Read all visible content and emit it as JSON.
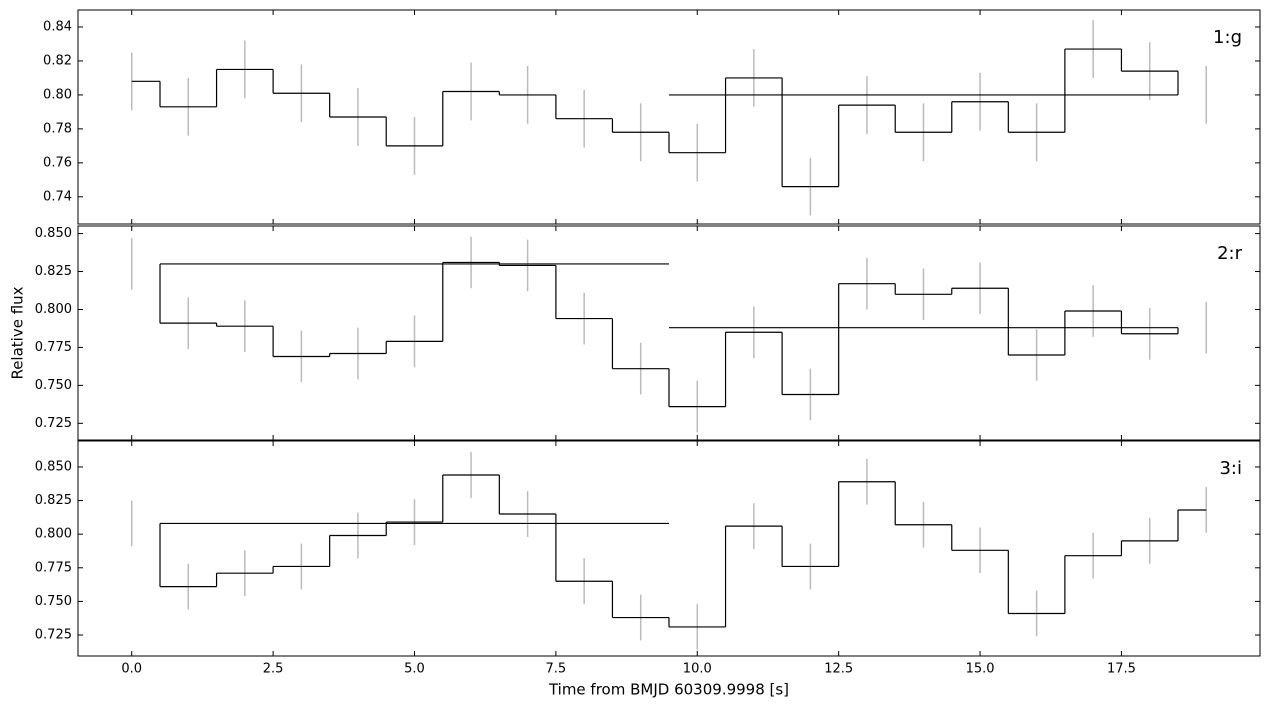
{
  "chart_data": [
    {
      "type": "step",
      "label": "1:g",
      "xlim": [
        -0.95,
        19.95
      ],
      "xticks": [
        0,
        2.5,
        5,
        7.5,
        10,
        12.5,
        15,
        17.5
      ],
      "xticklabels": false,
      "ylim": [
        0.724,
        0.85
      ],
      "yticks": [
        0.74,
        0.76,
        0.78,
        {
          "value": 0.8,
          "label": "0.80"
        },
        0.82,
        0.84
      ],
      "errorbars": {
        "color": "#bbbbbb",
        "x": [
          0,
          1,
          2,
          3,
          4,
          5,
          6,
          7,
          8,
          9,
          10,
          11,
          12,
          13,
          14,
          15,
          16,
          17,
          18,
          19
        ],
        "values": [
          0.808,
          0.793,
          0.815,
          0.801,
          0.787,
          0.77,
          0.802,
          0.8,
          0.786,
          0.778,
          0.766,
          0.81,
          0.746,
          0.794,
          0.778,
          0.796,
          0.778,
          0.827,
          0.814,
          0.8
        ],
        "errors": [
          0.017,
          0.017,
          0.017,
          0.017,
          0.017,
          0.017,
          0.017,
          0.017,
          0.017,
          0.017,
          0.017,
          0.017,
          0.017,
          0.017,
          0.017,
          0.017,
          0.017,
          0.017,
          0.017,
          0.017
        ]
      },
      "step": {
        "color": "#000000",
        "edges": [
          0,
          0.5,
          1.5,
          2.5,
          3.5,
          4.5,
          5.5,
          6.5,
          7.5,
          8.5,
          9.5,
          10.5,
          11.5,
          12.5,
          13.5,
          14.5,
          15.5,
          16.5,
          17.5,
          18.5
        ],
        "values": [
          0.808,
          0.793,
          0.815,
          0.801,
          0.787,
          0.77,
          0.802,
          0.8,
          0.786,
          0.778,
          0.766,
          0.81,
          0.746,
          0.794,
          0.778,
          0.796,
          0.778,
          0.827,
          0.814
        ]
      },
      "reference_lines": [
        {
          "x": [
            9.5,
            18.5
          ],
          "value": 0.8
        }
      ]
    },
    {
      "type": "step",
      "label": "2:r",
      "ylabel": "Relative flux",
      "xlim": [
        -0.95,
        19.95
      ],
      "xticks": [
        0,
        2.5,
        5,
        7.5,
        10,
        12.5,
        15,
        17.5
      ],
      "xticklabels": false,
      "ylim": [
        0.714,
        0.855
      ],
      "yticks": [
        0.725,
        {
          "value": 0.75,
          "label": "0.750"
        },
        0.775,
        {
          "value": 0.8,
          "label": "0.800"
        },
        0.825,
        {
          "value": 0.85,
          "label": "0.850"
        }
      ],
      "errorbars": {
        "color": "#bbbbbb",
        "x": [
          0,
          1,
          2,
          3,
          4,
          5,
          6,
          7,
          8,
          9,
          10,
          11,
          12,
          13,
          14,
          15,
          16,
          17,
          18,
          19
        ],
        "values": [
          0.83,
          0.791,
          0.789,
          0.769,
          0.771,
          0.779,
          0.831,
          0.829,
          0.794,
          0.761,
          0.736,
          0.785,
          0.744,
          0.817,
          0.81,
          0.814,
          0.77,
          0.799,
          0.784,
          0.788
        ],
        "errors": [
          0.017,
          0.017,
          0.017,
          0.017,
          0.017,
          0.017,
          0.017,
          0.017,
          0.017,
          0.017,
          0.017,
          0.017,
          0.017,
          0.017,
          0.017,
          0.017,
          0.017,
          0.017,
          0.017,
          0.017
        ]
      },
      "step": {
        "color": "#000000",
        "edges": [
          0.5,
          1.5,
          2.5,
          3.5,
          4.5,
          5.5,
          6.5,
          7.5,
          8.5,
          9.5,
          10.5,
          11.5,
          12.5,
          13.5,
          14.5,
          15.5,
          16.5,
          17.5,
          18.5
        ],
        "values": [
          0.791,
          0.789,
          0.769,
          0.771,
          0.779,
          0.831,
          0.829,
          0.794,
          0.761,
          0.736,
          0.785,
          0.744,
          0.817,
          0.81,
          0.814,
          0.77,
          0.799,
          0.784
        ]
      },
      "reference_lines": [
        {
          "x": [
            0.5,
            9.5
          ],
          "value": 0.83
        },
        {
          "x": [
            9.5,
            18.5
          ],
          "value": 0.788
        }
      ]
    },
    {
      "type": "step",
      "label": "3:i",
      "xlabel": "Time from BMJD 60309.9998 [s]",
      "xlim": [
        -0.95,
        19.95
      ],
      "xticks": [
        {
          "value": 0,
          "label": "0.0"
        },
        2.5,
        {
          "value": 5,
          "label": "5.0"
        },
        7.5,
        {
          "value": 10,
          "label": "10.0"
        },
        12.5,
        {
          "value": 15,
          "label": "15.0"
        },
        17.5
      ],
      "xticklabels": true,
      "ylim": [
        0.7094,
        0.8693
      ],
      "yticks": [
        0.725,
        {
          "value": 0.75,
          "label": "0.750"
        },
        0.775,
        {
          "value": 0.8,
          "label": "0.800"
        },
        0.825,
        {
          "value": 0.85,
          "label": "0.850"
        }
      ],
      "errorbars": {
        "color": "#bbbbbb",
        "x": [
          0,
          1,
          2,
          3,
          4,
          5,
          6,
          7,
          8,
          9,
          10,
          11,
          12,
          13,
          14,
          15,
          16,
          17,
          18,
          19
        ],
        "values": [
          0.808,
          0.761,
          0.771,
          0.776,
          0.799,
          0.809,
          0.844,
          0.815,
          0.765,
          0.738,
          0.731,
          0.806,
          0.776,
          0.839,
          0.807,
          0.788,
          0.741,
          0.784,
          0.795,
          0.818
        ],
        "errors": [
          0.017,
          0.017,
          0.017,
          0.017,
          0.017,
          0.017,
          0.017,
          0.017,
          0.017,
          0.017,
          0.017,
          0.017,
          0.017,
          0.017,
          0.017,
          0.017,
          0.017,
          0.017,
          0.017,
          0.017
        ]
      },
      "step": {
        "color": "#000000",
        "edges": [
          0.5,
          1.5,
          2.5,
          3.5,
          4.5,
          5.5,
          6.5,
          7.5,
          8.5,
          9.5,
          10.5,
          11.5,
          12.5,
          13.5,
          14.5,
          15.5,
          16.5,
          17.5,
          18.5,
          19
        ],
        "values": [
          0.761,
          0.771,
          0.776,
          0.799,
          0.809,
          0.844,
          0.815,
          0.765,
          0.738,
          0.731,
          0.806,
          0.776,
          0.839,
          0.807,
          0.788,
          0.741,
          0.784,
          0.795,
          0.818
        ]
      },
      "reference_lines": [
        {
          "x": [
            0.5,
            9.5
          ],
          "value": 0.808
        }
      ]
    }
  ]
}
